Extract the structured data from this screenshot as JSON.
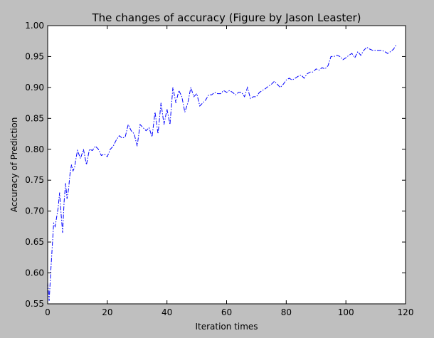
{
  "chart_data": {
    "type": "line",
    "title": "The changes of accuracy (Figure by Jason Leaster)",
    "xlabel": "Iteration times",
    "ylabel": "Accuracy of Prediction",
    "xlim": [
      0,
      120
    ],
    "ylim": [
      0.55,
      1.0
    ],
    "xticks": [
      "0",
      "20",
      "40",
      "60",
      "80",
      "100",
      "120"
    ],
    "yticks": [
      "0.55",
      "0.60",
      "0.65",
      "0.70",
      "0.75",
      "0.80",
      "0.85",
      "0.90",
      "0.95",
      "1.00"
    ],
    "grid": false,
    "line_style": "dash-dot",
    "line_color": "#0000ff",
    "series": [
      {
        "x": [
          0,
          0.5,
          1,
          1.5,
          2,
          2.5,
          3,
          3.5,
          4,
          4.5,
          5,
          5.5,
          6,
          6.5,
          7,
          7.5,
          8,
          8.5,
          9,
          9.5,
          10,
          11,
          12,
          13,
          14,
          15,
          16,
          17,
          18,
          19,
          20,
          21,
          22,
          23,
          24,
          25,
          26,
          27,
          28,
          29,
          30,
          31,
          32,
          33,
          34,
          35,
          36,
          37,
          38,
          39,
          40,
          41,
          42,
          43,
          44,
          45,
          46,
          47,
          48,
          49,
          50,
          51,
          52,
          53,
          54,
          55,
          56,
          57,
          58,
          59,
          60,
          61,
          62,
          63,
          64,
          65,
          66,
          67,
          68,
          69,
          70,
          71,
          72,
          73,
          74,
          75,
          76,
          77,
          78,
          79,
          80,
          81,
          82,
          83,
          84,
          85,
          86,
          87,
          88,
          89,
          90,
          91,
          92,
          93,
          94,
          95,
          96,
          97,
          98,
          99,
          100,
          101,
          102,
          103,
          104,
          105,
          106,
          107,
          108,
          109,
          110,
          111,
          112,
          113,
          114,
          115,
          116,
          117
        ],
        "values": [
          0.585,
          0.555,
          0.6,
          0.64,
          0.68,
          0.675,
          0.69,
          0.705,
          0.73,
          0.695,
          0.665,
          0.715,
          0.745,
          0.72,
          0.735,
          0.76,
          0.775,
          0.765,
          0.77,
          0.785,
          0.798,
          0.785,
          0.8,
          0.775,
          0.8,
          0.798,
          0.805,
          0.8,
          0.79,
          0.792,
          0.788,
          0.8,
          0.805,
          0.815,
          0.822,
          0.818,
          0.82,
          0.84,
          0.83,
          0.825,
          0.805,
          0.84,
          0.835,
          0.83,
          0.835,
          0.82,
          0.86,
          0.825,
          0.875,
          0.84,
          0.865,
          0.84,
          0.9,
          0.875,
          0.895,
          0.885,
          0.86,
          0.875,
          0.9,
          0.885,
          0.89,
          0.87,
          0.875,
          0.88,
          0.888,
          0.888,
          0.892,
          0.89,
          0.89,
          0.895,
          0.892,
          0.895,
          0.892,
          0.888,
          0.892,
          0.892,
          0.885,
          0.9,
          0.882,
          0.885,
          0.885,
          0.892,
          0.895,
          0.898,
          0.902,
          0.905,
          0.91,
          0.905,
          0.9,
          0.905,
          0.912,
          0.915,
          0.912,
          0.915,
          0.918,
          0.92,
          0.915,
          0.922,
          0.925,
          0.925,
          0.93,
          0.928,
          0.932,
          0.93,
          0.935,
          0.95,
          0.95,
          0.952,
          0.95,
          0.945,
          0.948,
          0.952,
          0.955,
          0.948,
          0.958,
          0.952,
          0.96,
          0.965,
          0.962,
          0.96,
          0.96,
          0.96,
          0.96,
          0.958,
          0.955,
          0.958,
          0.962,
          0.97
        ]
      }
    ]
  }
}
